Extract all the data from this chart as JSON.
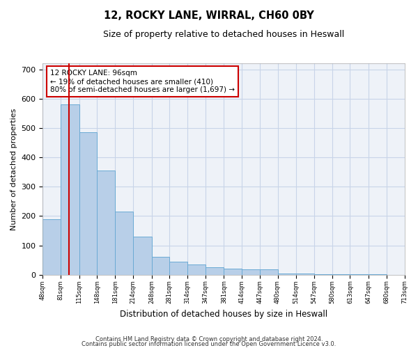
{
  "title": "12, ROCKY LANE, WIRRAL, CH60 0BY",
  "subtitle": "Size of property relative to detached houses in Heswall",
  "xlabel": "Distribution of detached houses by size in Heswall",
  "ylabel": "Number of detached properties",
  "footnote1": "Contains HM Land Registry data © Crown copyright and database right 2024.",
  "footnote2": "Contains public sector information licensed under the Open Government Licence v3.0.",
  "annotation_title": "12 ROCKY LANE: 96sqm",
  "annotation_line1": "← 19% of detached houses are smaller (410)",
  "annotation_line2": "80% of semi-detached houses are larger (1,697) →",
  "property_size_sqm": 96,
  "bin_edges": [
    48,
    81,
    115,
    148,
    181,
    214,
    248,
    281,
    314,
    347,
    381,
    414,
    447,
    480,
    514,
    547,
    580,
    613,
    647,
    680,
    713
  ],
  "bin_counts": [
    190,
    580,
    485,
    355,
    215,
    130,
    60,
    45,
    35,
    25,
    20,
    18,
    18,
    5,
    3,
    2,
    1,
    1,
    1,
    0
  ],
  "bar_color": "#b8cfe8",
  "bar_edge_color": "#6aaad4",
  "vline_color": "#cc0000",
  "annotation_box_facecolor": "#ffffff",
  "annotation_box_edgecolor": "#cc0000",
  "grid_color": "#c8d4e8",
  "bg_color": "#eef2f8",
  "ylim": [
    0,
    720
  ],
  "yticks": [
    0,
    100,
    200,
    300,
    400,
    500,
    600,
    700
  ]
}
